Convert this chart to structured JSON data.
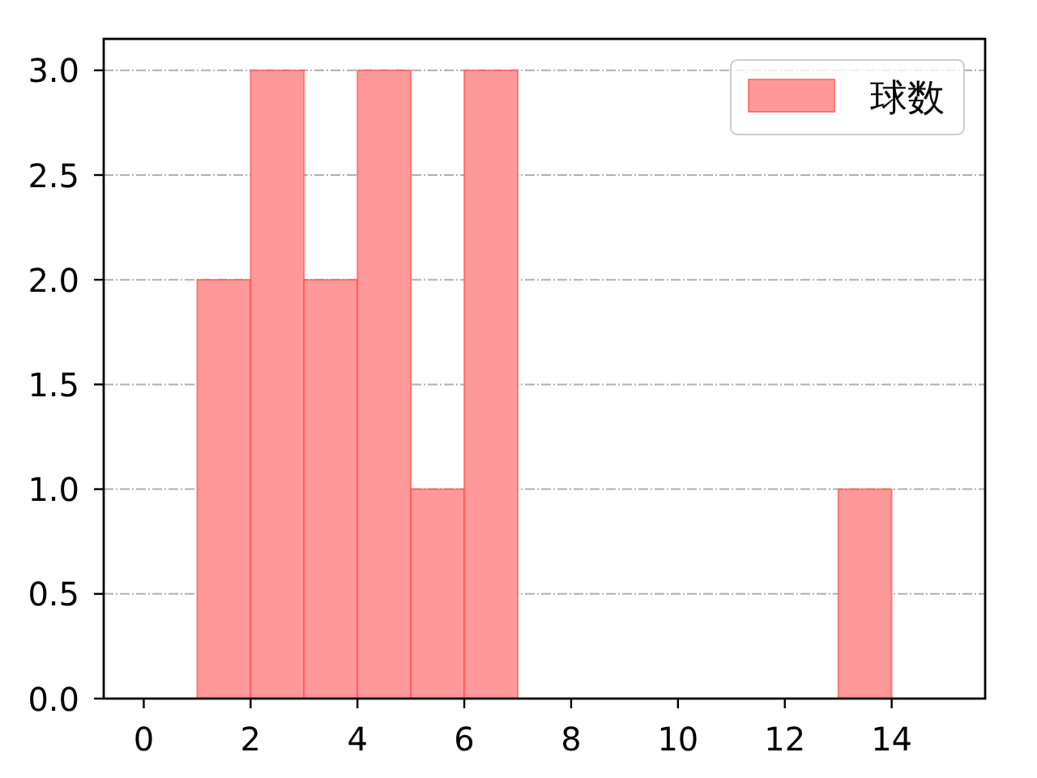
{
  "chart_data": {
    "type": "histogram",
    "bins": [
      1,
      2,
      3,
      4,
      5,
      6,
      7,
      13,
      14
    ],
    "series": [
      {
        "name": "球数",
        "color": "#ff9999",
        "values": [
          2,
          3,
          2,
          3,
          1,
          3,
          0,
          1
        ]
      }
    ],
    "xlim": [
      -0.75,
      15.75
    ],
    "xticks": [
      0,
      2,
      4,
      6,
      8,
      10,
      12,
      14
    ],
    "ylim": [
      0,
      3.15
    ],
    "yticks": [
      {
        "value": 0,
        "label": "0.0"
      },
      {
        "value": 0.5,
        "label": "0.5"
      },
      {
        "value": 1,
        "label": "1.0"
      },
      {
        "value": 1.5,
        "label": "1.5"
      },
      {
        "value": 2,
        "label": "2.0"
      },
      {
        "value": 2.5,
        "label": "2.5"
      },
      {
        "value": 3,
        "label": "3.0"
      }
    ],
    "grid": "y",
    "legend": "top right"
  }
}
